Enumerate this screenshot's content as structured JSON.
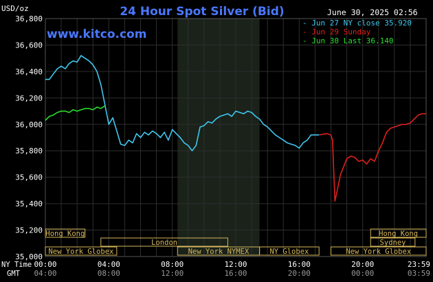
{
  "header": {
    "unit_label": "USD/oz",
    "title": "24 Hour Spot Silver (Bid)",
    "timestamp": "June 30, 2025 02:56",
    "watermark": "www.kitco.com"
  },
  "legend": [
    {
      "label": "Jun 27 NY close 35.920",
      "color": "#3fc8f0"
    },
    {
      "label": "Jun 29 Sunday",
      "color": "#e0201c"
    },
    {
      "label": "Jun 30 Last 36.140",
      "color": "#29e02c"
    }
  ],
  "sessions": [
    {
      "label": "Hong Kong",
      "row": 0,
      "from": 0,
      "to": 2.5
    },
    {
      "label": "Hong Kong",
      "row": 0,
      "from": 20.5,
      "to": 24
    },
    {
      "label": "London",
      "row": 1,
      "from": 3.5,
      "to": 11.5
    },
    {
      "label": "Sydney",
      "row": 1,
      "from": 20.5,
      "to": 23.3
    },
    {
      "label": "New York Globex",
      "row": 2,
      "from": 0,
      "to": 4.5
    },
    {
      "label": "New York NYMEX",
      "row": 2,
      "from": 8.33,
      "to": 13.5
    },
    {
      "label": "NY Globex",
      "row": 2,
      "from": 13.5,
      "to": 17.25
    },
    {
      "label": "New York Globex",
      "row": 2,
      "from": 18,
      "to": 24
    }
  ],
  "axis_rows": {
    "ny_label": "NY Time",
    "gmt_label": "GMT"
  },
  "colors": {
    "background": "#000000",
    "grid": "#2e2e2e",
    "shade": "#1a221a",
    "title": "#4a78ff",
    "text": "#ffffff",
    "session": "#d7b75a"
  },
  "chart_data": {
    "type": "line",
    "title": "24 Hour Spot Silver (Bid)",
    "ylabel": "USD/oz",
    "ylim": [
      35.0,
      36.8
    ],
    "yticks": [
      "35,000",
      "35,200",
      "35,400",
      "35,600",
      "35,800",
      "36,000",
      "36,200",
      "36,400",
      "36,600",
      "36,800"
    ],
    "xlim": [
      0,
      24
    ],
    "xticks_ny": [
      "00:00",
      "04:00",
      "08:00",
      "12:00",
      "16:00",
      "20:00",
      "23:59"
    ],
    "xticks_gmt": [
      "04:00",
      "08:00",
      "12:00",
      "16:00",
      "20:00",
      "00:00",
      "03:59"
    ],
    "shaded_period": [
      8.33,
      13.5
    ],
    "series": [
      {
        "name": "Jun 27 NY close 35.920",
        "color": "#3fc8f0",
        "x": [
          0,
          0.25,
          0.5,
          0.75,
          1.0,
          1.25,
          1.5,
          1.75,
          2.0,
          2.25,
          2.5,
          2.75,
          3.0,
          3.25,
          3.5,
          3.75,
          4.0,
          4.25,
          4.5,
          4.75,
          5.0,
          5.25,
          5.5,
          5.75,
          6.0,
          6.25,
          6.5,
          6.75,
          7.0,
          7.25,
          7.5,
          7.75,
          8.0,
          8.25,
          8.5,
          8.75,
          9.0,
          9.25,
          9.5,
          9.75,
          10.0,
          10.25,
          10.5,
          10.75,
          11.0,
          11.25,
          11.5,
          11.75,
          12.0,
          12.25,
          12.5,
          12.75,
          13.0,
          13.25,
          13.5,
          13.75,
          14.0,
          14.25,
          14.5,
          14.75,
          15.0,
          15.25,
          15.5,
          15.75,
          16.0,
          16.25,
          16.5,
          16.75,
          17.0,
          17.25
        ],
        "values": [
          36.34,
          36.34,
          36.38,
          36.42,
          36.44,
          36.42,
          36.46,
          36.48,
          36.47,
          36.52,
          36.5,
          36.48,
          36.45,
          36.4,
          36.3,
          36.15,
          36.0,
          36.05,
          35.95,
          35.85,
          35.84,
          35.88,
          35.86,
          35.93,
          35.9,
          35.94,
          35.92,
          35.95,
          35.93,
          35.9,
          35.94,
          35.88,
          35.96,
          35.93,
          35.9,
          35.86,
          35.84,
          35.8,
          35.84,
          35.98,
          35.99,
          36.02,
          36.01,
          36.04,
          36.06,
          36.07,
          36.08,
          36.06,
          36.1,
          36.09,
          36.08,
          36.1,
          36.09,
          36.06,
          36.04,
          36.0,
          35.98,
          35.95,
          35.92,
          35.9,
          35.88,
          35.86,
          35.85,
          35.84,
          35.82,
          35.86,
          35.88,
          35.92,
          35.92,
          35.92
        ]
      },
      {
        "name": "Jun 29 Sunday",
        "color": "#e0201c",
        "x": [
          17.25,
          17.75,
          18.0,
          18.1,
          18.25,
          18.4,
          18.6,
          18.8,
          19.0,
          19.25,
          19.5,
          19.75,
          20.0,
          20.25,
          20.5,
          20.75,
          21.0,
          21.25,
          21.5,
          21.75,
          22.0,
          22.25,
          22.5,
          22.75,
          23.0,
          23.25,
          23.5,
          23.75,
          24.0
        ],
        "values": [
          35.92,
          35.93,
          35.92,
          35.88,
          35.42,
          35.5,
          35.62,
          35.68,
          35.74,
          35.76,
          35.75,
          35.72,
          35.73,
          35.7,
          35.74,
          35.72,
          35.8,
          35.86,
          35.94,
          35.97,
          35.98,
          35.99,
          36.0,
          36.0,
          36.01,
          36.04,
          36.07,
          36.08,
          36.08
        ]
      },
      {
        "name": "Jun 30 Last 36.140",
        "color": "#29e02c",
        "x": [
          0,
          0.25,
          0.5,
          0.75,
          1.0,
          1.25,
          1.5,
          1.75,
          2.0,
          2.25,
          2.5,
          2.75,
          3.0,
          3.25,
          3.5,
          3.75
        ],
        "values": [
          36.03,
          36.06,
          36.07,
          36.09,
          36.1,
          36.1,
          36.09,
          36.11,
          36.1,
          36.11,
          36.12,
          36.12,
          36.11,
          36.13,
          36.12,
          36.14
        ]
      }
    ]
  }
}
